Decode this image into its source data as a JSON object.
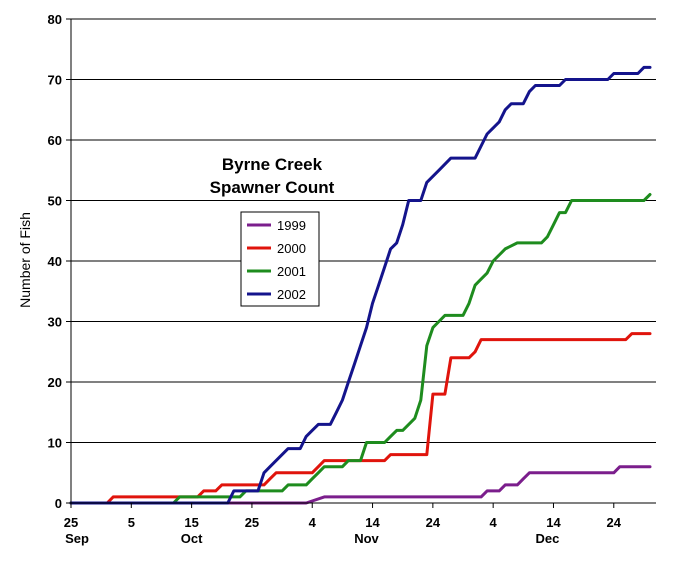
{
  "chart_data": {
    "type": "line",
    "title_lines": [
      "Byrne Creek",
      "Spawner Count"
    ],
    "ylabel": "Number of Fish",
    "ylim": [
      0,
      80
    ],
    "yticks": [
      0,
      10,
      20,
      30,
      40,
      50,
      60,
      70,
      80
    ],
    "grid": "horizontal",
    "legend_position": "center-left",
    "xlim": [
      0,
      97
    ],
    "x_day_unit": "days from 25 Sep",
    "x_ticks": [
      {
        "day": 0,
        "label": "25"
      },
      {
        "day": 10,
        "label": "5"
      },
      {
        "day": 20,
        "label": "15"
      },
      {
        "day": 30,
        "label": "25"
      },
      {
        "day": 40,
        "label": "4"
      },
      {
        "day": 50,
        "label": "14"
      },
      {
        "day": 60,
        "label": "24"
      },
      {
        "day": 70,
        "label": "4"
      },
      {
        "day": 80,
        "label": "14"
      },
      {
        "day": 90,
        "label": "24"
      }
    ],
    "month_labels": [
      {
        "day": 1,
        "label": "Sep"
      },
      {
        "day": 20,
        "label": "Oct"
      },
      {
        "day": 49,
        "label": "Nov"
      },
      {
        "day": 79,
        "label": "Dec"
      }
    ],
    "series": [
      {
        "name": "1999",
        "color": "#7B1E8C",
        "points": [
          [
            0,
            0
          ],
          [
            39,
            0
          ],
          [
            42,
            1
          ],
          [
            68,
            1
          ],
          [
            69,
            2
          ],
          [
            71,
            2
          ],
          [
            72,
            3
          ],
          [
            74,
            3
          ],
          [
            75,
            4
          ],
          [
            76,
            5
          ],
          [
            90,
            5
          ],
          [
            91,
            6
          ],
          [
            96,
            6
          ]
        ]
      },
      {
        "name": "2000",
        "color": "#E0140C",
        "points": [
          [
            0,
            0
          ],
          [
            6,
            0
          ],
          [
            7,
            1
          ],
          [
            21,
            1
          ],
          [
            22,
            2
          ],
          [
            24,
            2
          ],
          [
            25,
            3
          ],
          [
            32,
            3
          ],
          [
            33,
            4
          ],
          [
            34,
            5
          ],
          [
            40,
            5
          ],
          [
            41,
            6
          ],
          [
            42,
            7
          ],
          [
            52,
            7
          ],
          [
            53,
            8
          ],
          [
            59,
            8
          ],
          [
            60,
            18
          ],
          [
            62,
            18
          ],
          [
            63,
            24
          ],
          [
            66,
            24
          ],
          [
            67,
            25
          ],
          [
            68,
            27
          ],
          [
            92,
            27
          ],
          [
            93,
            28
          ],
          [
            96,
            28
          ]
        ]
      },
      {
        "name": "2001",
        "color": "#1E8C1E",
        "points": [
          [
            0,
            0
          ],
          [
            17,
            0
          ],
          [
            18,
            1
          ],
          [
            28,
            1
          ],
          [
            29,
            2
          ],
          [
            35,
            2
          ],
          [
            36,
            3
          ],
          [
            39,
            3
          ],
          [
            40,
            4
          ],
          [
            41,
            5
          ],
          [
            42,
            6
          ],
          [
            45,
            6
          ],
          [
            46,
            7
          ],
          [
            48,
            7
          ],
          [
            49,
            10
          ],
          [
            52,
            10
          ],
          [
            53,
            11
          ],
          [
            54,
            12
          ],
          [
            55,
            12
          ],
          [
            56,
            13
          ],
          [
            57,
            14
          ],
          [
            58,
            17
          ],
          [
            59,
            26
          ],
          [
            60,
            29
          ],
          [
            61,
            30
          ],
          [
            62,
            31
          ],
          [
            65,
            31
          ],
          [
            66,
            33
          ],
          [
            67,
            36
          ],
          [
            68,
            37
          ],
          [
            69,
            38
          ],
          [
            70,
            40
          ],
          [
            71,
            41
          ],
          [
            72,
            42
          ],
          [
            74,
            43
          ],
          [
            78,
            43
          ],
          [
            79,
            44
          ],
          [
            80,
            46
          ],
          [
            81,
            48
          ],
          [
            82,
            48
          ],
          [
            83,
            50
          ],
          [
            95,
            50
          ],
          [
            96,
            51
          ]
        ]
      },
      {
        "name": "2002",
        "color": "#14148C",
        "points": [
          [
            0,
            0
          ],
          [
            26,
            0
          ],
          [
            27,
            2
          ],
          [
            31,
            2
          ],
          [
            32,
            5
          ],
          [
            33,
            6
          ],
          [
            34,
            7
          ],
          [
            35,
            8
          ],
          [
            36,
            9
          ],
          [
            38,
            9
          ],
          [
            39,
            11
          ],
          [
            40,
            12
          ],
          [
            41,
            13
          ],
          [
            43,
            13
          ],
          [
            44,
            15
          ],
          [
            45,
            17
          ],
          [
            46,
            20
          ],
          [
            47,
            23
          ],
          [
            48,
            26
          ],
          [
            49,
            29
          ],
          [
            50,
            33
          ],
          [
            51,
            36
          ],
          [
            52,
            39
          ],
          [
            53,
            42
          ],
          [
            54,
            43
          ],
          [
            55,
            46
          ],
          [
            56,
            50
          ],
          [
            58,
            50
          ],
          [
            59,
            53
          ],
          [
            60,
            54
          ],
          [
            61,
            55
          ],
          [
            62,
            56
          ],
          [
            63,
            57
          ],
          [
            67,
            57
          ],
          [
            68,
            59
          ],
          [
            69,
            61
          ],
          [
            70,
            62
          ],
          [
            71,
            63
          ],
          [
            72,
            65
          ],
          [
            73,
            66
          ],
          [
            75,
            66
          ],
          [
            76,
            68
          ],
          [
            77,
            69
          ],
          [
            81,
            69
          ],
          [
            82,
            70
          ],
          [
            89,
            70
          ],
          [
            90,
            71
          ],
          [
            94,
            71
          ],
          [
            95,
            72
          ],
          [
            96,
            72
          ]
        ]
      }
    ]
  }
}
